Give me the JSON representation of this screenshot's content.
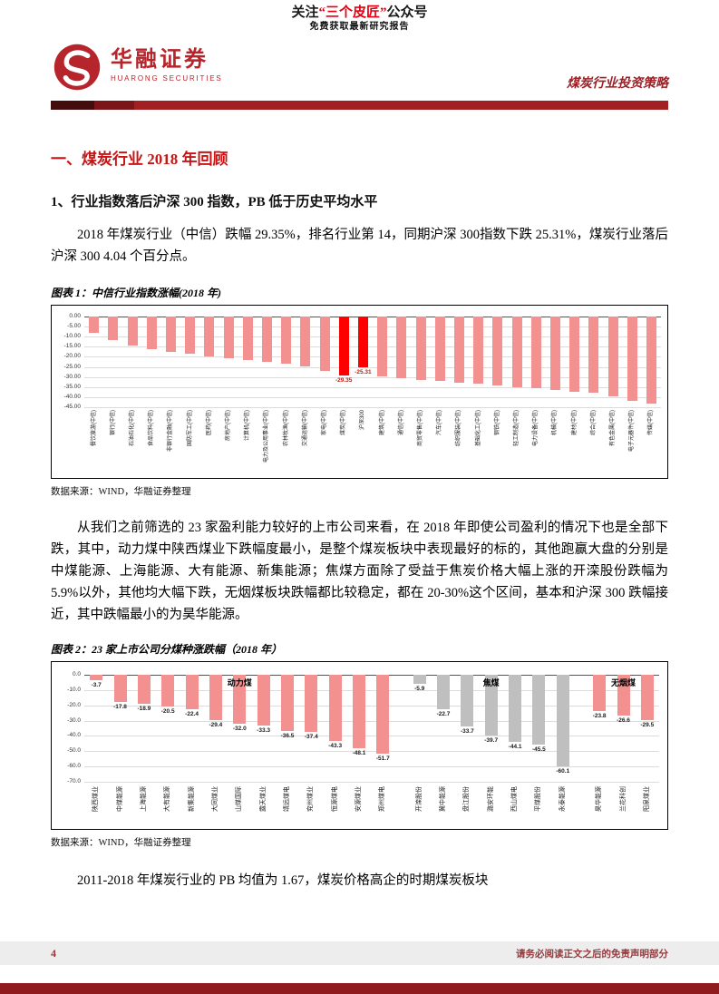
{
  "banner": {
    "prefix": "关注",
    "brand": "“三个皮匠”",
    "suffix": "公众号",
    "line2": "免费获取最新研究报告"
  },
  "header": {
    "brand_cn": "华融证券",
    "brand_en": "HUARONG SECURITIES",
    "report_title": "煤炭行业投资策略"
  },
  "section": {
    "h1": "一、煤炭行业 2018 年回顾",
    "h2": "1、行业指数落后沪深 300 指数，PB 低于历史平均水平"
  },
  "paragraphs": {
    "p1": "2018 年煤炭行业（中信）跌幅 29.35%，排名行业第 14，同期沪深 300指数下跌 25.31%，煤炭行业落后沪深 300 4.04 个百分点。",
    "p2": "从我们之前筛选的 23 家盈利能力较好的上市公司来看，在 2018 年即使公司盈利的情况下也是全部下跌，其中，动力煤中陕西煤业下跌幅度最小，是整个煤炭板块中表现最好的标的，其他跑赢大盘的分别是中煤能源、上海能源、大有能源、新集能源；焦煤方面除了受益于焦炭价格大幅上涨的开滦股份跌幅为 5.9%以外，其他均大幅下跌，无烟煤板块跌幅都比较稳定，都在 20-30%这个区间，基本和沪深 300 跌幅接近，其中跌幅最小的为昊华能源。",
    "p3": "2011-2018 年煤炭行业的 PB 均值为 1.67，煤炭价格高企的时期煤炭板块"
  },
  "figure1": {
    "title": "图表 1：中信行业指数涨幅(2018 年)",
    "source": "数据来源：WIND，华融证券整理"
  },
  "figure2": {
    "title": "图表 2：23 家上市公司分煤种涨跌幅（2018 年）",
    "source": "数据来源：WIND，华融证券整理"
  },
  "footer": {
    "page": "4",
    "disclaimer": "请务必阅读正文之后的免责声明部分"
  },
  "colors": {
    "accent_red": "#c81414",
    "brand_red": "#b5252b",
    "bar_pink": "#f2918f",
    "bar_highlight": "#fe0000",
    "bar_gray": "#bfbfbf",
    "divider_red": "#a22024"
  },
  "chart_data": [
    {
      "type": "bar",
      "title": "中信行业指数涨幅(2018年)",
      "xlabel": "",
      "ylabel": "",
      "ylim": [
        -45,
        0
      ],
      "ytick_step": 5,
      "grid": true,
      "legend": "none",
      "bar_color": "#f2918f",
      "highlight_color": "#fe0000",
      "categories": [
        "餐饮旅游(中信)",
        "银行(中信)",
        "石油石化(中信)",
        "食品饮料(中信)",
        "非银行金融(中信)",
        "国防军工(中信)",
        "医药(中信)",
        "房地产(中信)",
        "计算机(中信)",
        "电力及公用事业(中信)",
        "农林牧渔(中信)",
        "交通运输(中信)",
        "家电(中信)",
        "煤炭(中信)",
        "沪深300",
        "建筑(中信)",
        "通信(中信)",
        "商贸零售(中信)",
        "汽车(中信)",
        "纺织服装(中信)",
        "基础化工(中信)",
        "钢铁(中信)",
        "轻工制造(中信)",
        "电力设备(中信)",
        "机械(中信)",
        "建材(中信)",
        "综合(中信)",
        "有色金属(中信)",
        "电子元器件(中信)",
        "传媒(中信)"
      ],
      "values": [
        -8.0,
        -11.7,
        -14.2,
        -16.0,
        -17.5,
        -18.6,
        -19.7,
        -20.8,
        -21.8,
        -22.6,
        -23.5,
        -24.6,
        -27.0,
        -29.35,
        -25.31,
        -29.9,
        -30.7,
        -31.4,
        -32.1,
        -32.8,
        -33.5,
        -34.2,
        -34.9,
        -35.6,
        -36.4,
        -37.2,
        -38.0,
        -39.8,
        -41.8,
        -43.4
      ],
      "highlight_indexes": [
        13,
        14
      ],
      "data_labels": [
        {
          "index": 13,
          "text": "-29.35"
        },
        {
          "index": 14,
          "text": "-25.31"
        }
      ]
    },
    {
      "type": "bar",
      "title": "23家上市公司分煤种涨跌幅（2018年）",
      "xlabel": "",
      "ylabel": "",
      "ylim": [
        -70,
        0
      ],
      "ytick_step": 10,
      "grid": true,
      "legend": "none",
      "groups": [
        {
          "name": "动力煤",
          "color": "#f2918f",
          "companies": [
            "陕西煤业",
            "中煤能源",
            "上海能源",
            "大有能源",
            "新集能源",
            "大同煤业",
            "山煤国际",
            "露天煤业",
            "靖远煤电",
            "兖州煤业",
            "恒源煤电",
            "安源煤业",
            "郑州煤电"
          ],
          "values": [
            -3.7,
            -17.8,
            -18.9,
            -20.5,
            -22.4,
            -29.4,
            -32.0,
            -33.3,
            -36.5,
            -37.4,
            -43.3,
            -48.1,
            -51.7
          ]
        },
        {
          "name": "焦煤",
          "color": "#bfbfbf",
          "companies": [
            "开滦股份",
            "冀中能源",
            "盘江股份",
            "潞安环能",
            "西山煤电",
            "平煤股份",
            "永泰能源"
          ],
          "values": [
            -5.9,
            -22.7,
            -33.7,
            -39.7,
            -44.1,
            -45.5,
            -60.1
          ]
        },
        {
          "name": "无烟煤",
          "color": "#f2918f",
          "companies": [
            "昊华能源",
            "兰花科创",
            "阳泉煤业"
          ],
          "values": [
            -23.8,
            -26.6,
            -29.5
          ]
        }
      ]
    }
  ]
}
